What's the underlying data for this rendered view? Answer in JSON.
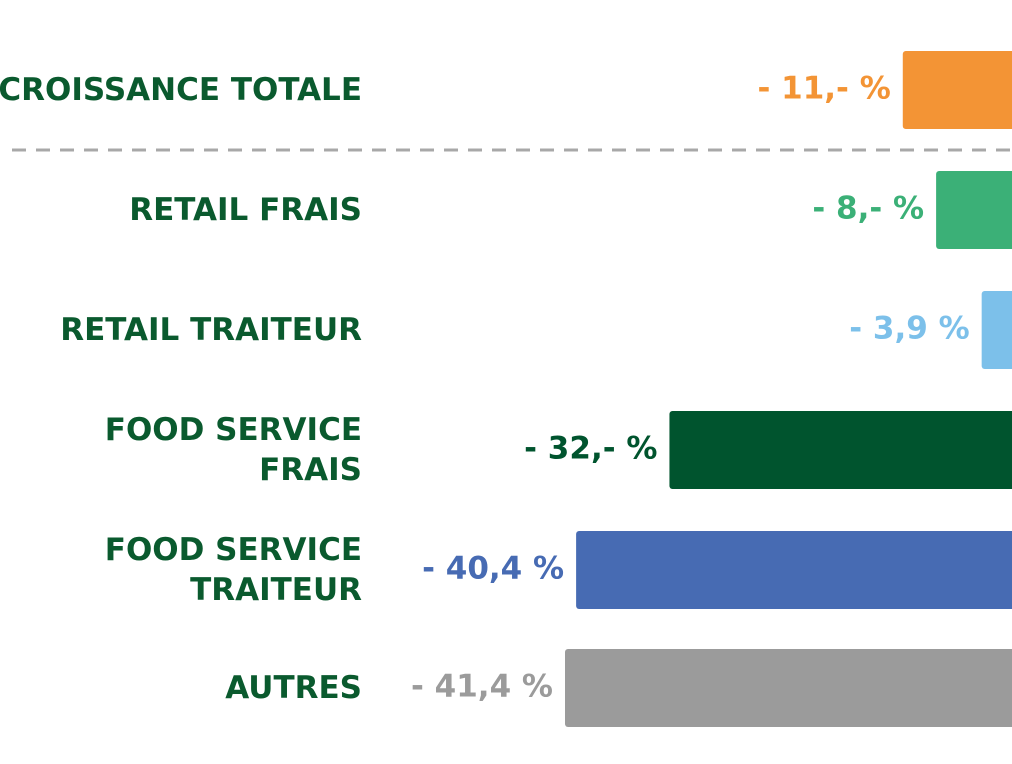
{
  "chart_data": {
    "type": "barh",
    "categories": [
      "CROISSANCE TOTALE",
      "RETAIL FRAIS",
      "RETAIL TRAITEUR",
      "FOOD SERVICE\nFRAIS",
      "FOOD SERVICE\nTRAITEUR",
      "AUTRES"
    ],
    "values": [
      -11,
      -8,
      -3.9,
      -32,
      -40.4,
      -41.4
    ],
    "value_labels": [
      "- 11,- %",
      "- 8,- %",
      "- 3,9 %",
      "- 32,- %",
      "- 40,4 %",
      "- 41,4 %"
    ],
    "colors": [
      "#f39435",
      "#3bb077",
      "#7cc0ea",
      "#00542e",
      "#476bb3",
      "#9b9b9b"
    ],
    "xlim": [
      -45,
      0
    ]
  }
}
